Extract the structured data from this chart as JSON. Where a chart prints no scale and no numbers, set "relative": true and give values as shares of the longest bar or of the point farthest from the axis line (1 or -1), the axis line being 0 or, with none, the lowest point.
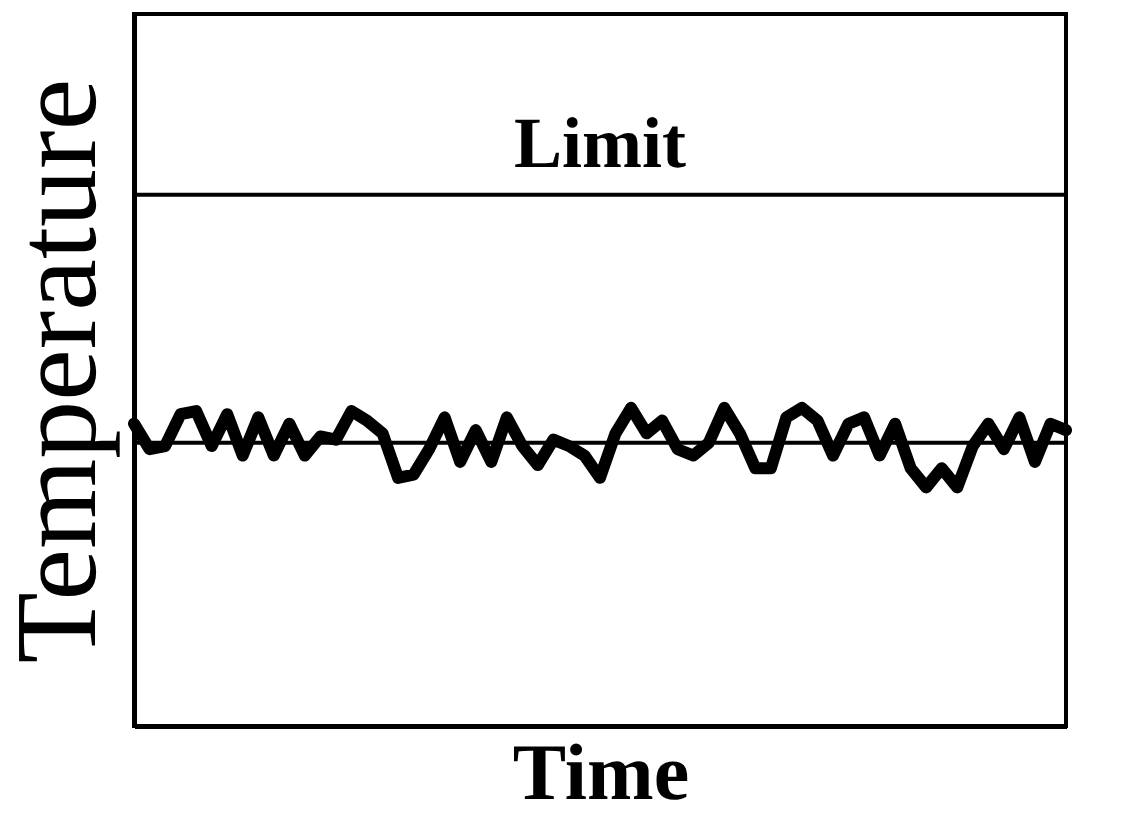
{
  "chart_data": {
    "type": "line",
    "xlabel": "Time",
    "ylabel": "Temperature",
    "relative": true,
    "tick_labels": false,
    "grid": false,
    "marker": "none",
    "line_style": "solid",
    "categories": [
      null,
      null,
      null,
      null,
      null,
      null,
      null,
      null,
      null,
      null,
      null,
      null,
      null,
      null,
      null,
      null,
      null,
      null,
      null,
      null,
      null,
      null,
      null,
      null,
      null,
      null,
      null,
      null,
      null,
      null,
      null,
      null,
      null,
      null,
      null,
      null,
      null,
      null,
      null,
      null,
      null,
      null,
      null,
      null,
      null,
      null,
      null,
      null,
      null,
      null,
      null,
      null,
      null,
      null,
      null,
      null,
      null,
      null,
      null,
      null,
      null
    ],
    "series": [
      {
        "color": "#000000",
        "values": [
          0.95,
          0.87,
          0.88,
          0.98,
          0.99,
          0.88,
          0.98,
          0.85,
          0.97,
          0.85,
          0.95,
          0.85,
          0.91,
          0.9,
          0.99,
          0.96,
          0.92,
          0.78,
          0.79,
          0.87,
          0.97,
          0.83,
          0.93,
          0.83,
          0.97,
          0.88,
          0.82,
          0.9,
          0.88,
          0.85,
          0.78,
          0.92,
          1,
          0.92,
          0.96,
          0.87,
          0.85,
          0.89,
          1,
          0.92,
          0.81,
          0.81,
          0.97,
          1,
          0.96,
          0.85,
          0.95,
          0.97,
          0.85,
          0.95,
          0.81,
          0.75,
          0.81,
          0.75,
          0.88,
          0.95,
          0.87,
          0.97,
          0.83,
          0.95,
          0.93
        ]
      }
    ],
    "ref_lines": [
      {
        "axis": "y",
        "value": 1.67,
        "label": "Limit",
        "color": "#000000",
        "line_style": "solid"
      },
      {
        "axis": "y",
        "value": 0.89,
        "color": "#000000",
        "line_style": "solid"
      }
    ]
  }
}
